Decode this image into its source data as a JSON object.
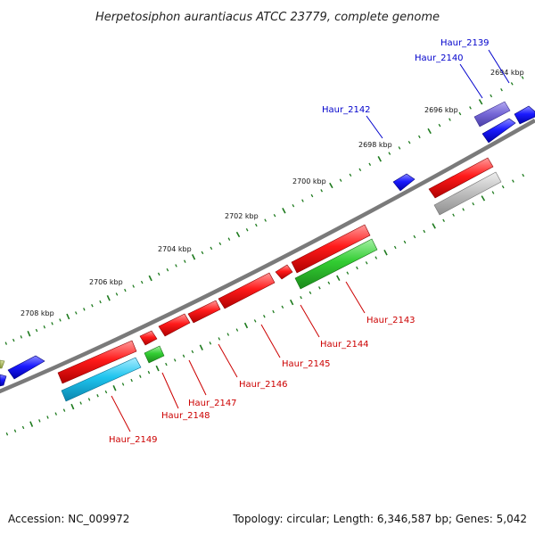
{
  "title": "Herpetosiphon aurantiacus ATCC 23779, complete genome",
  "footer": {
    "accession": "Accession: NC_009972",
    "summary": "Topology: circular; Length: 6,346,587 bp; Genes: 5,042"
  },
  "colors": {
    "backbone": "#777777",
    "tick": "#1d7a1d",
    "forward_label": "#0000cc",
    "reverse_label": "#cc0000"
  },
  "ticks": [
    "2694 kbp",
    "2696 kbp",
    "2698 kbp",
    "2700 kbp",
    "2702 kbp",
    "2704 kbp",
    "2706 kbp",
    "2708 kbp"
  ],
  "forward_labels": [
    "Haur_2139",
    "Haur_2140",
    "Haur_2142"
  ],
  "reverse_labels": [
    "Haur_2143",
    "Haur_2144",
    "Haur_2145",
    "Haur_2146",
    "Haur_2147",
    "Haur_2148",
    "Haur_2149"
  ]
}
